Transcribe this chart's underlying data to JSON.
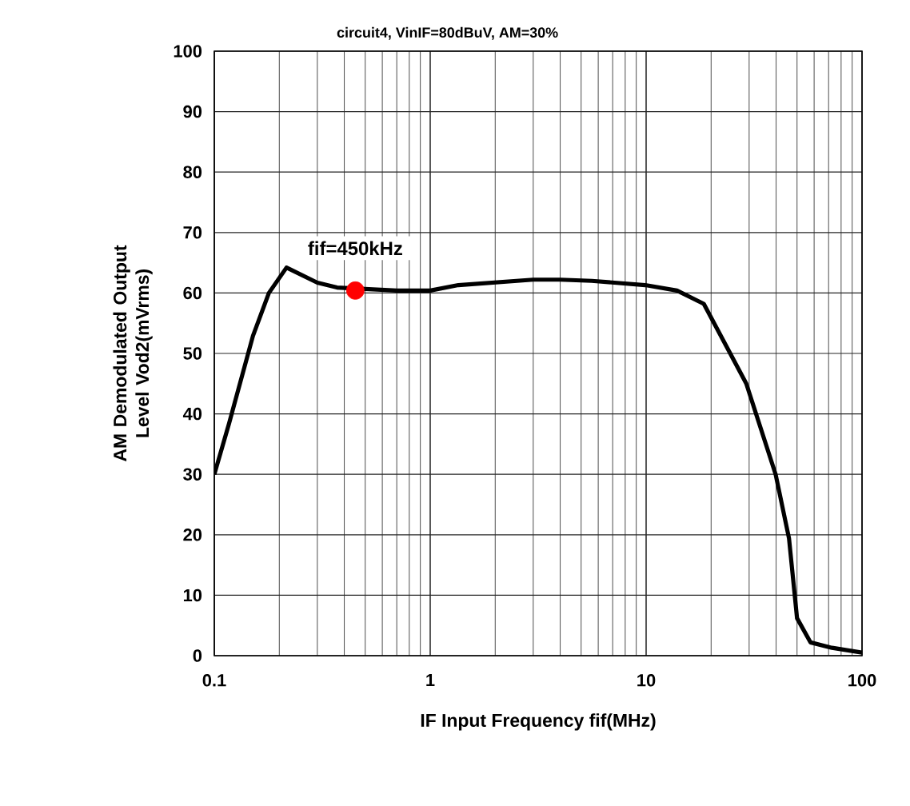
{
  "chart_data": {
    "type": "line",
    "subtitle": "circuit4, VinIF=80dBuV, AM=30%",
    "xlabel": "IF Input Frequency fif(MHz)",
    "ylabel": "AM Demodulated Output Level Vod2(mVrms)",
    "log": "x",
    "xlim": [
      0.1,
      100
    ],
    "xticks": [
      0.1,
      1,
      10,
      100
    ],
    "ylim": [
      0,
      100
    ],
    "yticks": [
      0,
      10,
      20,
      30,
      40,
      50,
      60,
      70,
      80,
      90,
      100
    ],
    "grid": true,
    "marker": "none",
    "line_style": "solid",
    "series": [
      {
        "color": "#000000",
        "x": [
          0.1,
          0.117,
          0.151,
          0.179,
          0.216,
          0.3,
          0.37,
          0.7,
          1.0,
          1.35,
          3.0,
          4.0,
          5.6,
          9.9,
          13.9,
          18.5,
          29.1,
          39.8,
          45.9,
          50,
          57.7,
          72.6,
          100
        ],
        "values": [
          30,
          38.4,
          52.9,
          60,
          64.2,
          61.7,
          60.9,
          60.4,
          60.4,
          61.3,
          62.2,
          62.2,
          62,
          61.3,
          60.4,
          58.2,
          45,
          30,
          19.4,
          6.2,
          2.2,
          1.3,
          0.5
        ]
      },
      {
        "type": "scatter",
        "color": "#ff0000",
        "marker": "circle",
        "x": [
          0.45
        ],
        "values": [
          60.4
        ]
      }
    ],
    "annotations": [
      {
        "text": "fif=450kHz",
        "x": 0.45,
        "y": 60.4
      }
    ]
  }
}
